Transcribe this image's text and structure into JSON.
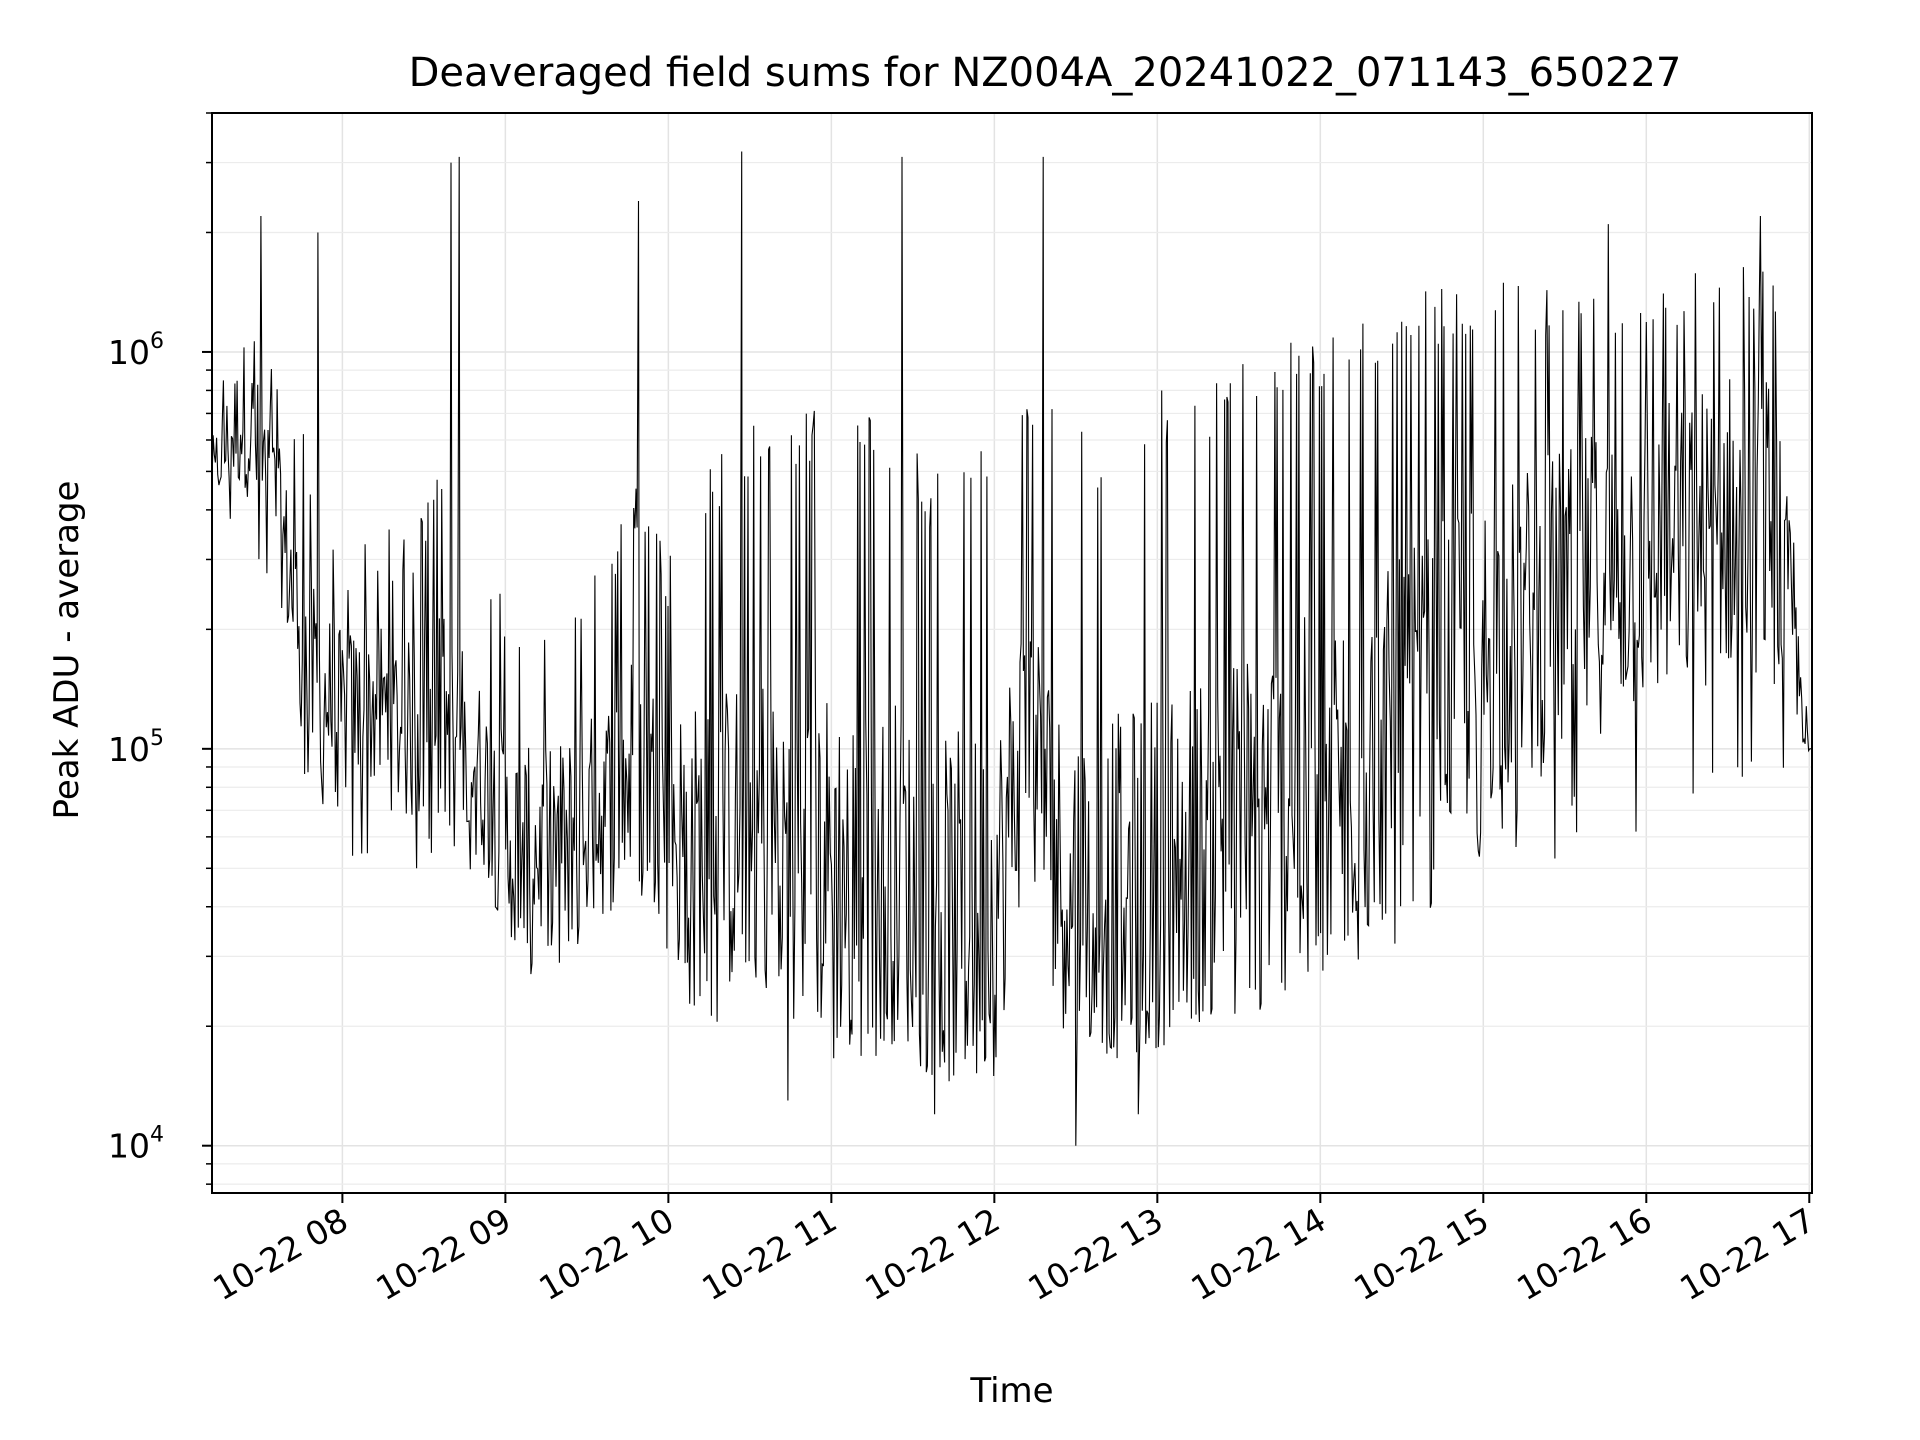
{
  "chart_data": {
    "type": "line",
    "title": "Deaveraged field sums for NZ004A_20241022_071143_650227",
    "xlabel": "Time",
    "ylabel": "Peak ADU - average",
    "yscale": "log",
    "ylim": [
      7600,
      4000000
    ],
    "xlim": [
      "2024-10-22 07:12",
      "2024-10-22 17:01"
    ],
    "x_ticks": [
      {
        "value": "2024-10-22 08:00",
        "label": "10-22 08"
      },
      {
        "value": "2024-10-22 09:00",
        "label": "10-22 09"
      },
      {
        "value": "2024-10-22 10:00",
        "label": "10-22 10"
      },
      {
        "value": "2024-10-22 11:00",
        "label": "10-22 11"
      },
      {
        "value": "2024-10-22 12:00",
        "label": "10-22 12"
      },
      {
        "value": "2024-10-22 13:00",
        "label": "10-22 13"
      },
      {
        "value": "2024-10-22 14:00",
        "label": "10-22 14"
      },
      {
        "value": "2024-10-22 15:00",
        "label": "10-22 15"
      },
      {
        "value": "2024-10-22 16:00",
        "label": "10-22 16"
      },
      {
        "value": "2024-10-22 17:00",
        "label": "10-22 17"
      }
    ],
    "y_ticks": [
      {
        "value": 10000,
        "base": "10",
        "exp": "4"
      },
      {
        "value": 100000,
        "base": "10",
        "exp": "5"
      },
      {
        "value": 1000000,
        "base": "10",
        "exp": "6"
      }
    ],
    "grid": true,
    "line_color": "#000000",
    "series": [
      {
        "x": [
          "2024-10-22 07:12",
          "2024-10-22 07:24",
          "2024-10-22 07:36",
          "2024-10-22 07:48",
          "2024-10-22 08:00",
          "2024-10-22 08:12",
          "2024-10-22 08:24",
          "2024-10-22 08:36",
          "2024-10-22 08:48",
          "2024-10-22 09:00",
          "2024-10-22 09:12",
          "2024-10-22 09:24",
          "2024-10-22 09:36",
          "2024-10-22 09:48",
          "2024-10-22 10:00",
          "2024-10-22 10:12",
          "2024-10-22 10:24",
          "2024-10-22 10:36",
          "2024-10-22 10:48",
          "2024-10-22 11:00",
          "2024-10-22 11:12",
          "2024-10-22 11:24",
          "2024-10-22 11:36",
          "2024-10-22 11:48",
          "2024-10-22 12:00",
          "2024-10-22 12:12",
          "2024-10-22 12:24",
          "2024-10-22 12:36",
          "2024-10-22 12:48",
          "2024-10-22 13:00",
          "2024-10-22 13:12",
          "2024-10-22 13:24",
          "2024-10-22 13:36",
          "2024-10-22 13:48",
          "2024-10-22 14:00",
          "2024-10-22 14:12",
          "2024-10-22 14:24",
          "2024-10-22 14:36",
          "2024-10-22 14:48",
          "2024-10-22 15:00",
          "2024-10-22 15:12",
          "2024-10-22 15:24",
          "2024-10-22 15:36",
          "2024-10-22 15:48",
          "2024-10-22 16:00",
          "2024-10-22 16:12",
          "2024-10-22 16:24",
          "2024-10-22 16:36",
          "2024-10-22 16:48",
          "2024-10-22 17:00"
        ],
        "lower": [
          400000,
          300000,
          200000,
          70000,
          50000,
          55000,
          50000,
          45000,
          50000,
          28000,
          25000,
          26000,
          30000,
          35000,
          28000,
          20000,
          20000,
          22000,
          18000,
          16000,
          15000,
          18000,
          15000,
          14000,
          15000,
          40000,
          20000,
          18000,
          16000,
          17000,
          18000,
          19000,
          20000,
          22000,
          25000,
          28000,
          30000,
          35000,
          40000,
          45000,
          50000,
          50000,
          55000,
          60000,
          60000,
          60000,
          65000,
          70000,
          60000,
          80000
        ],
        "upper": [
          800000,
          1500000,
          900000,
          600000,
          300000,
          400000,
          350000,
          500000,
          300000,
          250000,
          200000,
          250000,
          300000,
          500000,
          300000,
          500000,
          600000,
          700000,
          700000,
          800000,
          700000,
          700000,
          500000,
          600000,
          600000,
          800000,
          700000,
          600000,
          700000,
          800000,
          800000,
          900000,
          1000000,
          1100000,
          1100000,
          1200000,
          1300000,
          1400000,
          1500000,
          1500000,
          1500000,
          1500000,
          1600000,
          1500000,
          1600000,
          1600000,
          1700000,
          1800000,
          1700000,
          100000
        ],
        "typical": [
          500000,
          700000,
          400000,
          150000,
          120000,
          130000,
          110000,
          120000,
          100000,
          60000,
          55000,
          60000,
          70000,
          90000,
          70000,
          55000,
          60000,
          65000,
          55000,
          50000,
          45000,
          50000,
          40000,
          40000,
          40000,
          120000,
          50000,
          45000,
          45000,
          50000,
          55000,
          60000,
          65000,
          70000,
          80000,
          90000,
          100000,
          120000,
          150000,
          180000,
          200000,
          220000,
          250000,
          280000,
          300000,
          320000,
          350000,
          400000,
          350000,
          100000
        ],
        "peaks": [
          {
            "x": "2024-10-22 07:30",
            "y": 2200000
          },
          {
            "x": "2024-10-22 07:51",
            "y": 2000000
          },
          {
            "x": "2024-10-22 08:40",
            "y": 3000000
          },
          {
            "x": "2024-10-22 08:43",
            "y": 3100000
          },
          {
            "x": "2024-10-22 09:49",
            "y": 2400000
          },
          {
            "x": "2024-10-22 10:27",
            "y": 3200000
          },
          {
            "x": "2024-10-22 11:26",
            "y": 3100000
          },
          {
            "x": "2024-10-22 12:18",
            "y": 3100000
          },
          {
            "x": "2024-10-22 15:46",
            "y": 2100000
          },
          {
            "x": "2024-10-22 16:42",
            "y": 2200000
          }
        ],
        "troughs": [
          {
            "x": "2024-10-22 12:30",
            "y": 10000
          },
          {
            "x": "2024-10-22 11:38",
            "y": 12000
          },
          {
            "x": "2024-10-22 12:53",
            "y": 12000
          },
          {
            "x": "2024-10-22 10:44",
            "y": 13000
          }
        ]
      }
    ]
  }
}
